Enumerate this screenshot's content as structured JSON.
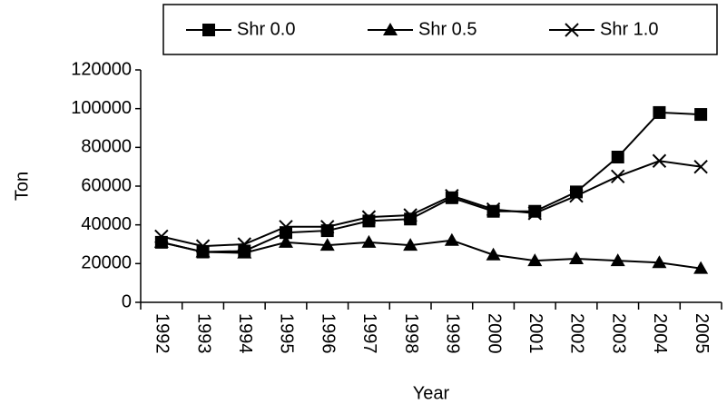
{
  "chart_data": {
    "type": "line",
    "x_label": "Year",
    "y_label": "Ton",
    "categories": [
      "1992",
      "1993",
      "1994",
      "1995",
      "1996",
      "1997",
      "1998",
      "1999",
      "2000",
      "2001",
      "2002",
      "2003",
      "2004",
      "2005"
    ],
    "series": [
      {
        "name": "Shr 0.0",
        "color": "#000000",
        "marker": "square",
        "values": [
          31000,
          26000,
          26500,
          36000,
          37000,
          42000,
          43000,
          54000,
          47000,
          47000,
          57000,
          75000,
          98000,
          97000
        ]
      },
      {
        "name": "Shr 0.5",
        "color": "#000000",
        "marker": "triangle",
        "values": [
          31000,
          26000,
          25500,
          31000,
          29500,
          31000,
          29500,
          32000,
          24500,
          21500,
          22500,
          21500,
          20500,
          17500
        ]
      },
      {
        "name": "Shr 1.0",
        "color": "#000000",
        "marker": "x",
        "values": [
          34000,
          29000,
          30000,
          39000,
          39000,
          44000,
          45000,
          55000,
          48000,
          46000,
          55000,
          65000,
          73000,
          70000
        ]
      }
    ],
    "ylim": [
      0,
      120000
    ],
    "yticks": [
      0,
      20000,
      40000,
      60000,
      80000,
      100000,
      120000
    ],
    "legend": "top"
  }
}
